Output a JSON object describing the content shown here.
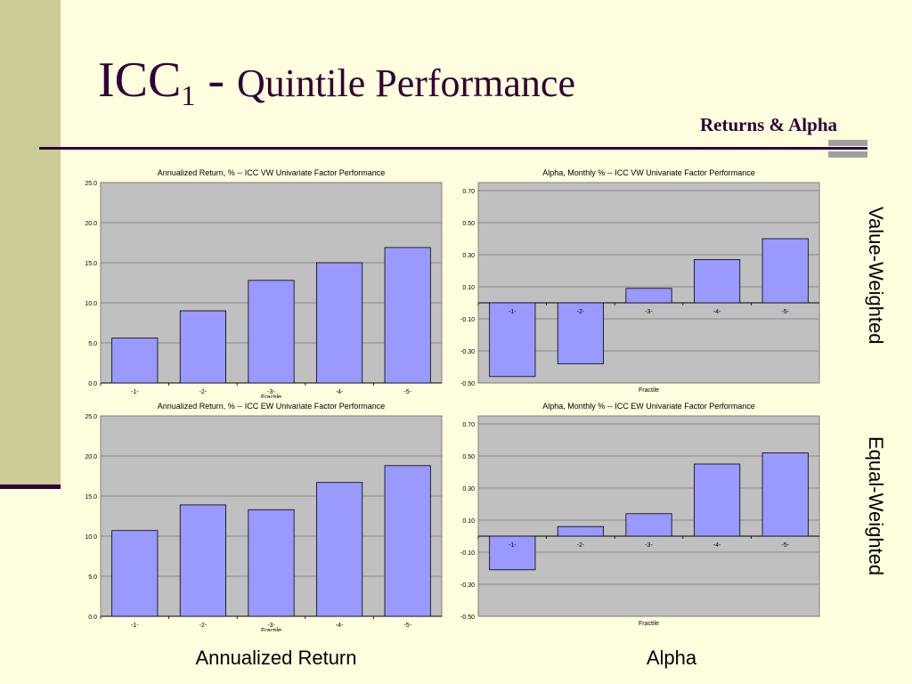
{
  "slide": {
    "title_main": "ICC",
    "title_sub": "1",
    "title_dash": " - ",
    "title_rest": "Quintile Performance",
    "subtitle": "Returns & Alpha",
    "row_labels": [
      "Value-Weighted",
      "Equal-Weighted"
    ],
    "col_labels": [
      "Annualized Return",
      "Alpha"
    ]
  },
  "colors": {
    "bar": "#9999ff",
    "plot_bg": "#c0c0c0",
    "title": "#330033"
  },
  "chart_data": [
    {
      "type": "bar",
      "title": "Annualized Return, %  -- ICC VW Univariate Factor Performance",
      "xlabel": "Fractile",
      "categories": [
        "-1-",
        "-2-",
        "-3-",
        "-4-",
        "-5-"
      ],
      "values": [
        5.6,
        9.0,
        12.8,
        15.0,
        16.9
      ],
      "ylim": [
        0,
        25
      ],
      "yticks": [
        "0.0",
        "5.0",
        "10.0",
        "15.0",
        "20.0",
        "25.0"
      ],
      "grid": true
    },
    {
      "type": "bar",
      "title": "Alpha, Monthly %  -- ICC VW Univariate Factor Performance",
      "xlabel": "Fractile",
      "categories": [
        "-1-",
        "-2-",
        "-3-",
        "-4-",
        "-5-"
      ],
      "values": [
        -0.46,
        -0.38,
        0.09,
        0.27,
        0.4
      ],
      "ylim": [
        -0.5,
        0.75
      ],
      "yticks": [
        "-0.50",
        "-0.30",
        "-0.10",
        "0.10",
        "0.30",
        "0.50",
        "0.70"
      ],
      "grid": true
    },
    {
      "type": "bar",
      "title": "Annualized Return, %  -- ICC EW Univariate Factor Performance",
      "xlabel": "Fractile",
      "categories": [
        "-1-",
        "-2-",
        "-3-",
        "-4-",
        "-5-"
      ],
      "values": [
        10.7,
        13.9,
        13.3,
        16.7,
        18.8
      ],
      "ylim": [
        0,
        25
      ],
      "yticks": [
        "0.0",
        "5.0",
        "10.0",
        "15.0",
        "20.0",
        "25.0"
      ],
      "grid": true
    },
    {
      "type": "bar",
      "title": "Alpha, Monthly %  -- ICC EW Univariate Factor Performance",
      "xlabel": "Fractile",
      "categories": [
        "-1-",
        "-2-",
        "-3-",
        "-4-",
        "-5-"
      ],
      "values": [
        -0.21,
        0.06,
        0.14,
        0.45,
        0.52
      ],
      "ylim": [
        -0.5,
        0.75
      ],
      "yticks": [
        "-0.50",
        "-0.30",
        "-0.10",
        "0.10",
        "0.30",
        "0.50",
        "0.70"
      ],
      "grid": true
    }
  ]
}
